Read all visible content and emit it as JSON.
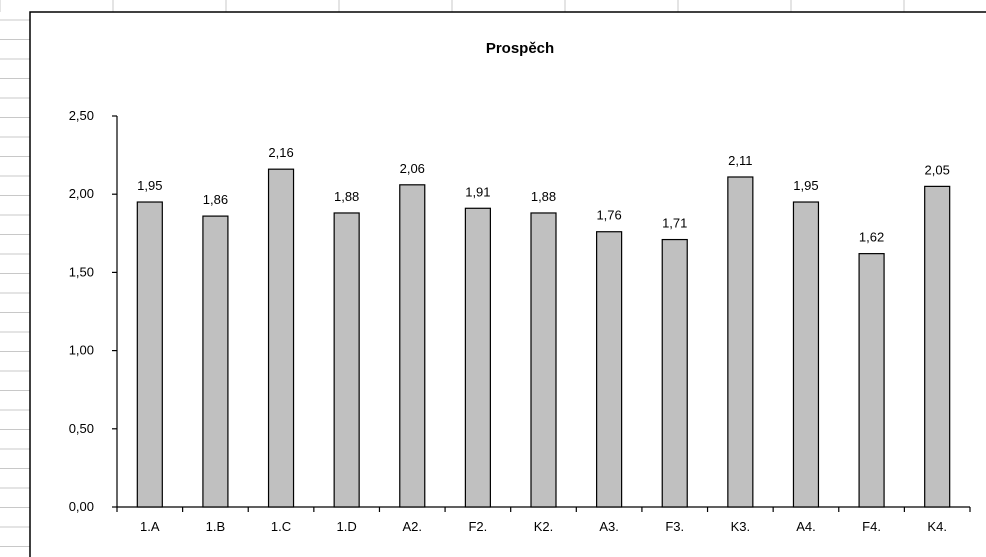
{
  "chart_data": {
    "type": "bar",
    "title": "Prospěch",
    "categories": [
      "1.A",
      "1.B",
      "1.C",
      "1.D",
      "A2.",
      "F2.",
      "K2.",
      "A3.",
      "F3.",
      "K3.",
      "A4.",
      "F4.",
      "K4."
    ],
    "values": [
      1.95,
      1.86,
      2.16,
      1.88,
      2.06,
      1.91,
      1.88,
      1.76,
      1.71,
      2.11,
      1.95,
      1.62,
      2.05
    ],
    "value_labels": [
      "1,95",
      "1,86",
      "2,16",
      "1,88",
      "2,06",
      "1,91",
      "1,88",
      "1,76",
      "1,71",
      "2,11",
      "1,95",
      "1,62",
      "2,05"
    ],
    "y_ticks": [
      0,
      0.5,
      1,
      1.5,
      2,
      2.5
    ],
    "y_tick_labels": [
      "0,00",
      "0,50",
      "1,00",
      "1,50",
      "2,00",
      "2,50"
    ],
    "ylim": [
      0,
      2.5
    ],
    "xlabel": "",
    "ylabel": "",
    "grid": false,
    "legend": false,
    "bar_color": "#c0c0c0",
    "bar_edge_color": "#000000"
  }
}
